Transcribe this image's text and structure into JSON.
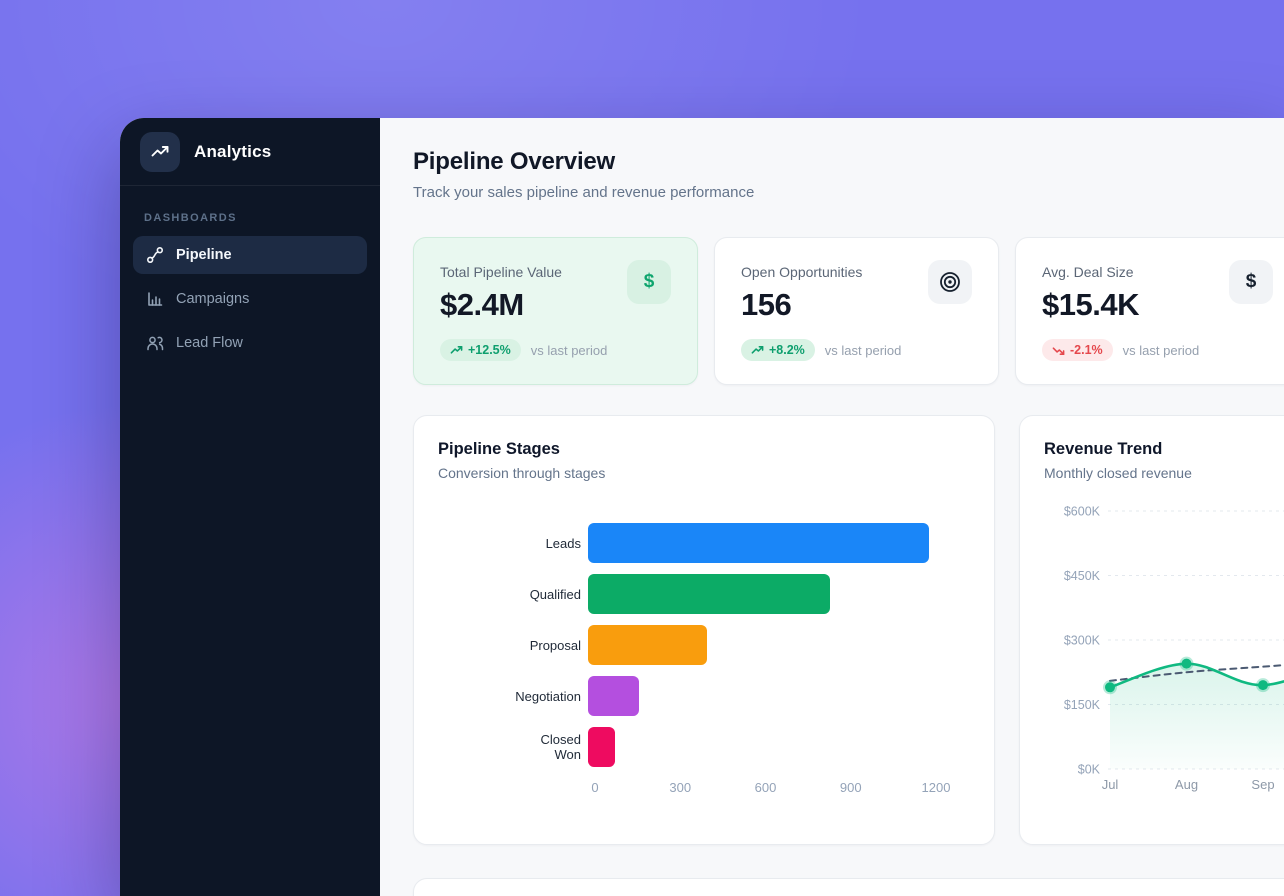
{
  "sidebar": {
    "brand": "Analytics",
    "section_label": "DASHBOARDS",
    "items": [
      {
        "label": "Pipeline",
        "icon": "route-icon",
        "active": true
      },
      {
        "label": "Campaigns",
        "icon": "bar-chart-icon",
        "active": false
      },
      {
        "label": "Lead Flow",
        "icon": "users-icon",
        "active": false
      }
    ]
  },
  "header": {
    "title": "Pipeline Overview",
    "subtitle": "Track your sales pipeline and revenue performance"
  },
  "stats": [
    {
      "label": "Total Pipeline Value",
      "value": "$2.4M",
      "change": "+12.5%",
      "trend": "up",
      "compare": "vs last period",
      "icon": "dollar-icon",
      "highlight": true
    },
    {
      "label": "Open Opportunities",
      "value": "156",
      "change": "+8.2%",
      "trend": "up",
      "compare": "vs last period",
      "icon": "target-icon",
      "highlight": false
    },
    {
      "label": "Avg. Deal Size",
      "value": "$15.4K",
      "change": "-2.1%",
      "trend": "down",
      "compare": "vs last period",
      "icon": "dollar-icon",
      "highlight": false
    }
  ],
  "chart_data": [
    {
      "type": "bar",
      "orientation": "horizontal",
      "title": "Pipeline Stages",
      "subtitle": "Conversion through stages",
      "categories": [
        "Leads",
        "Qualified",
        "Proposal",
        "Negotiation",
        "Closed\nWon"
      ],
      "values": [
        1200,
        850,
        420,
        180,
        95
      ],
      "bar_colors": [
        "#1a86f8",
        "#0cab66",
        "#f99d0d",
        "#b44fdf",
        "#ee0b60"
      ],
      "xlim": [
        0,
        1200
      ],
      "x_ticks": [
        "0",
        "300",
        "600",
        "900",
        "1200"
      ],
      "grid": false
    },
    {
      "type": "line",
      "title": "Revenue Trend",
      "subtitle": "Monthly closed revenue",
      "x": [
        "Jul",
        "Aug",
        "Sep"
      ],
      "series": [
        {
          "name": "actual",
          "values": [
            190,
            245,
            195
          ],
          "color": "#10b981",
          "style": "solid",
          "area": true,
          "points": true
        },
        {
          "name": "trend",
          "values": [
            205,
            225,
            238
          ],
          "color": "#4b5a72",
          "style": "dashed",
          "area": false,
          "points": false
        }
      ],
      "continues_offscreen": true,
      "offscreen_anchor": {
        "actual": 258,
        "trend": 252
      },
      "ylim": [
        0,
        600
      ],
      "y_ticks": [
        "$0K",
        "$150K",
        "$300K",
        "$450K",
        "$600K"
      ],
      "units": "$K",
      "grid": "dashed-horizontal",
      "legend": "none"
    }
  ],
  "colors": {
    "accent_green": "#10b981",
    "badge_up_bg": "#d9f2e4",
    "badge_up_text": "#0e9f6e",
    "badge_down_bg": "#fde9ea",
    "badge_down_text": "#e5484d",
    "sidebar_bg": "#0d1626",
    "page_purple": "#7671ee"
  }
}
